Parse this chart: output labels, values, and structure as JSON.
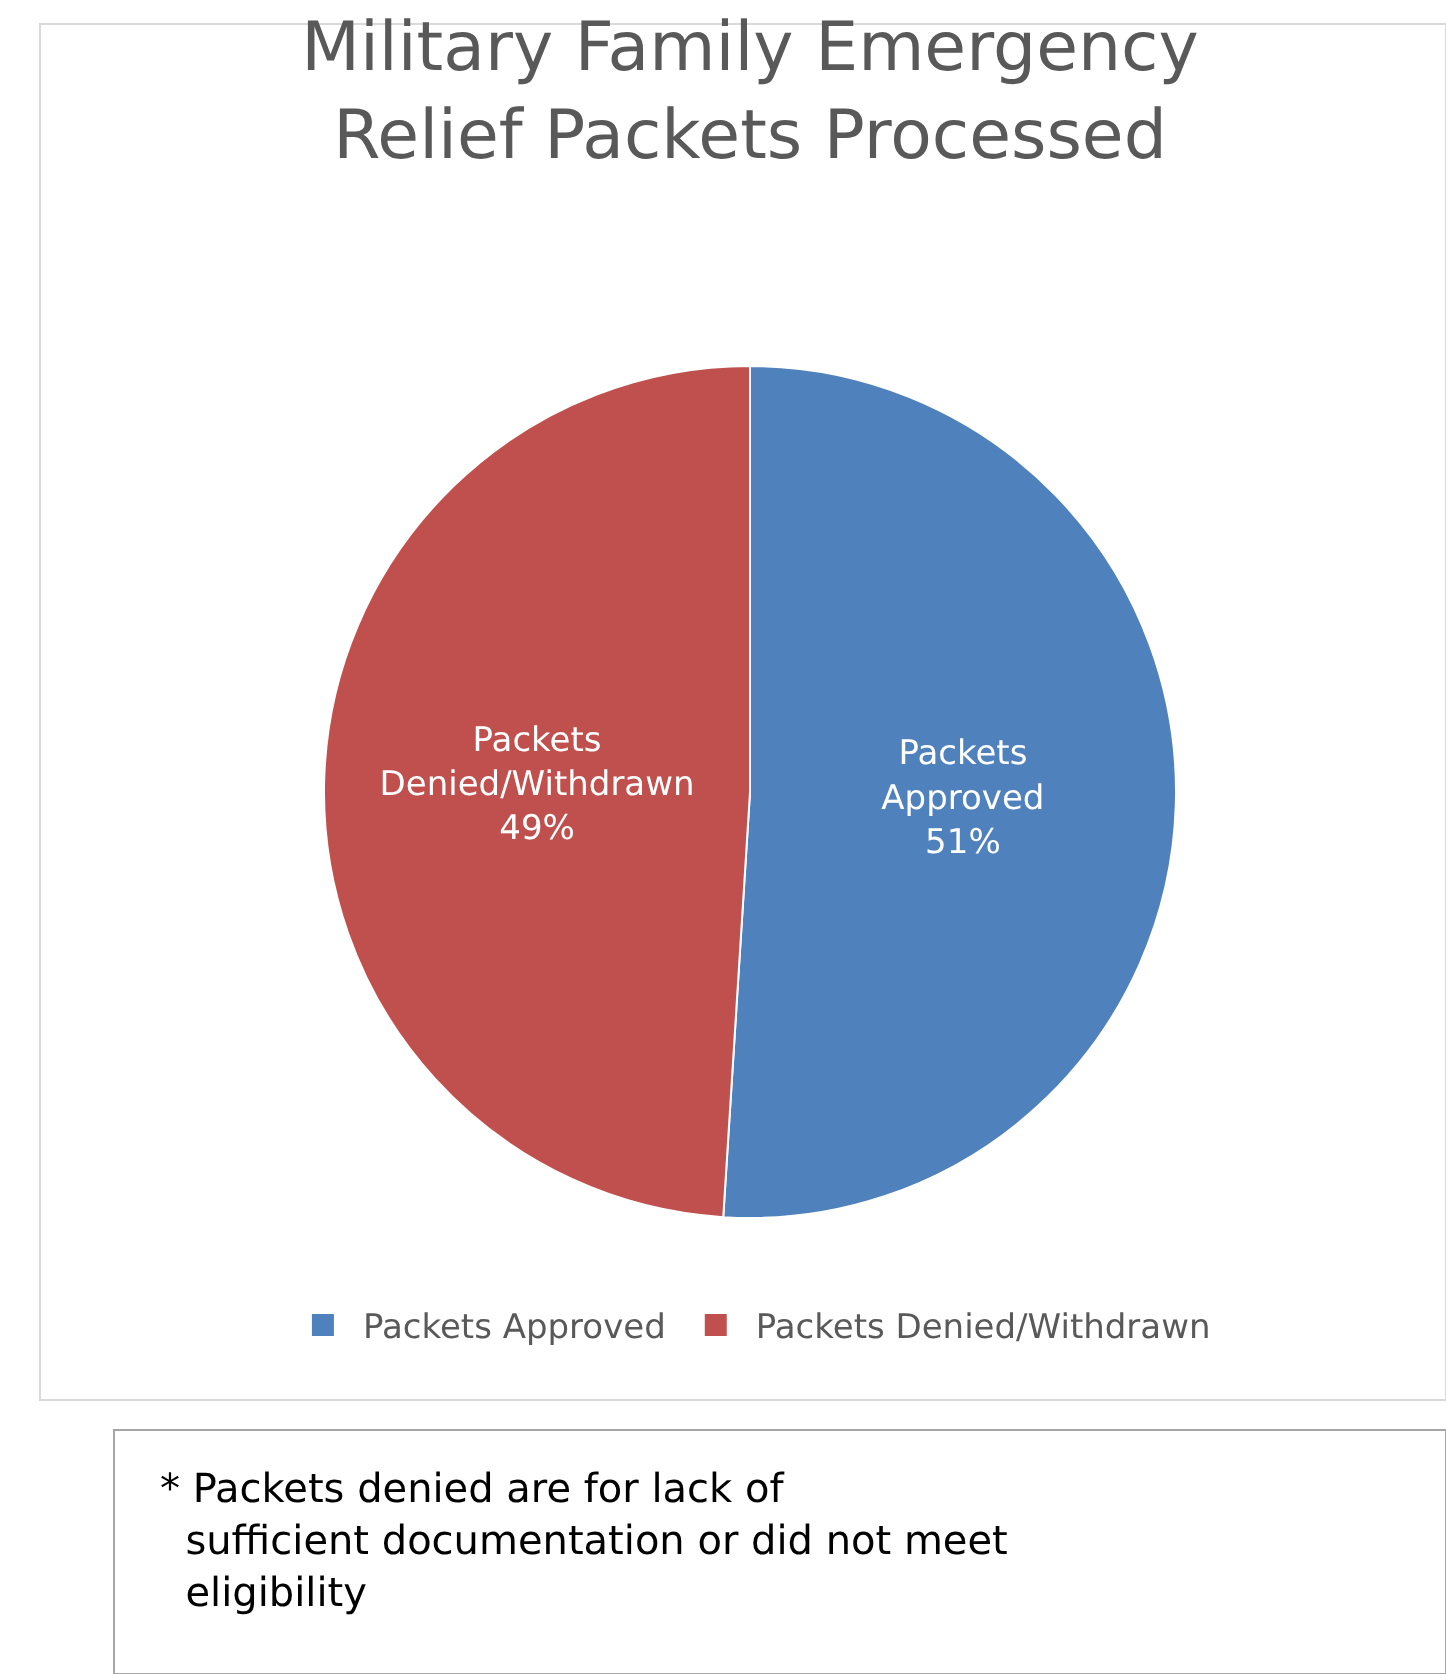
{
  "chart_data": {
    "type": "pie",
    "title": "Military Family Emergency Relief Packets Processed",
    "categories": [
      "Packets Approved",
      "Packets Denied/Withdrawn"
    ],
    "values": [
      51,
      49
    ],
    "colors": [
      "#4f81bd",
      "#c0504d"
    ],
    "value_labels": [
      "51%",
      "49%"
    ],
    "legend": "bottom",
    "annotations": [
      "* Packets denied are for lack of sufficient documentation or did not meet eligibility"
    ]
  }
}
